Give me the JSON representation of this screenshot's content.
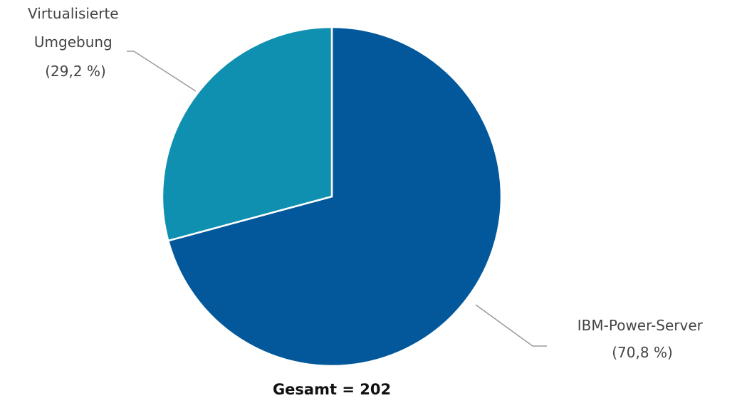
{
  "chart_data": {
    "type": "pie",
    "slices": [
      {
        "label_lines": [
          "IBM-Power-Server",
          "(70,8 %)"
        ],
        "name": "IBM-Power-Server",
        "value": 70.8,
        "color": "#02589a"
      },
      {
        "label_lines": [
          "Virtualisierte",
          "Umgebung",
          "(29,2 %)"
        ],
        "name": "Virtualisierte Umgebung",
        "value": 29.2,
        "color": "#0f90b0"
      }
    ],
    "total_label": "Gesamt = 202",
    "start_angle_deg": 0,
    "direction": "clockwise",
    "legend": "none"
  }
}
